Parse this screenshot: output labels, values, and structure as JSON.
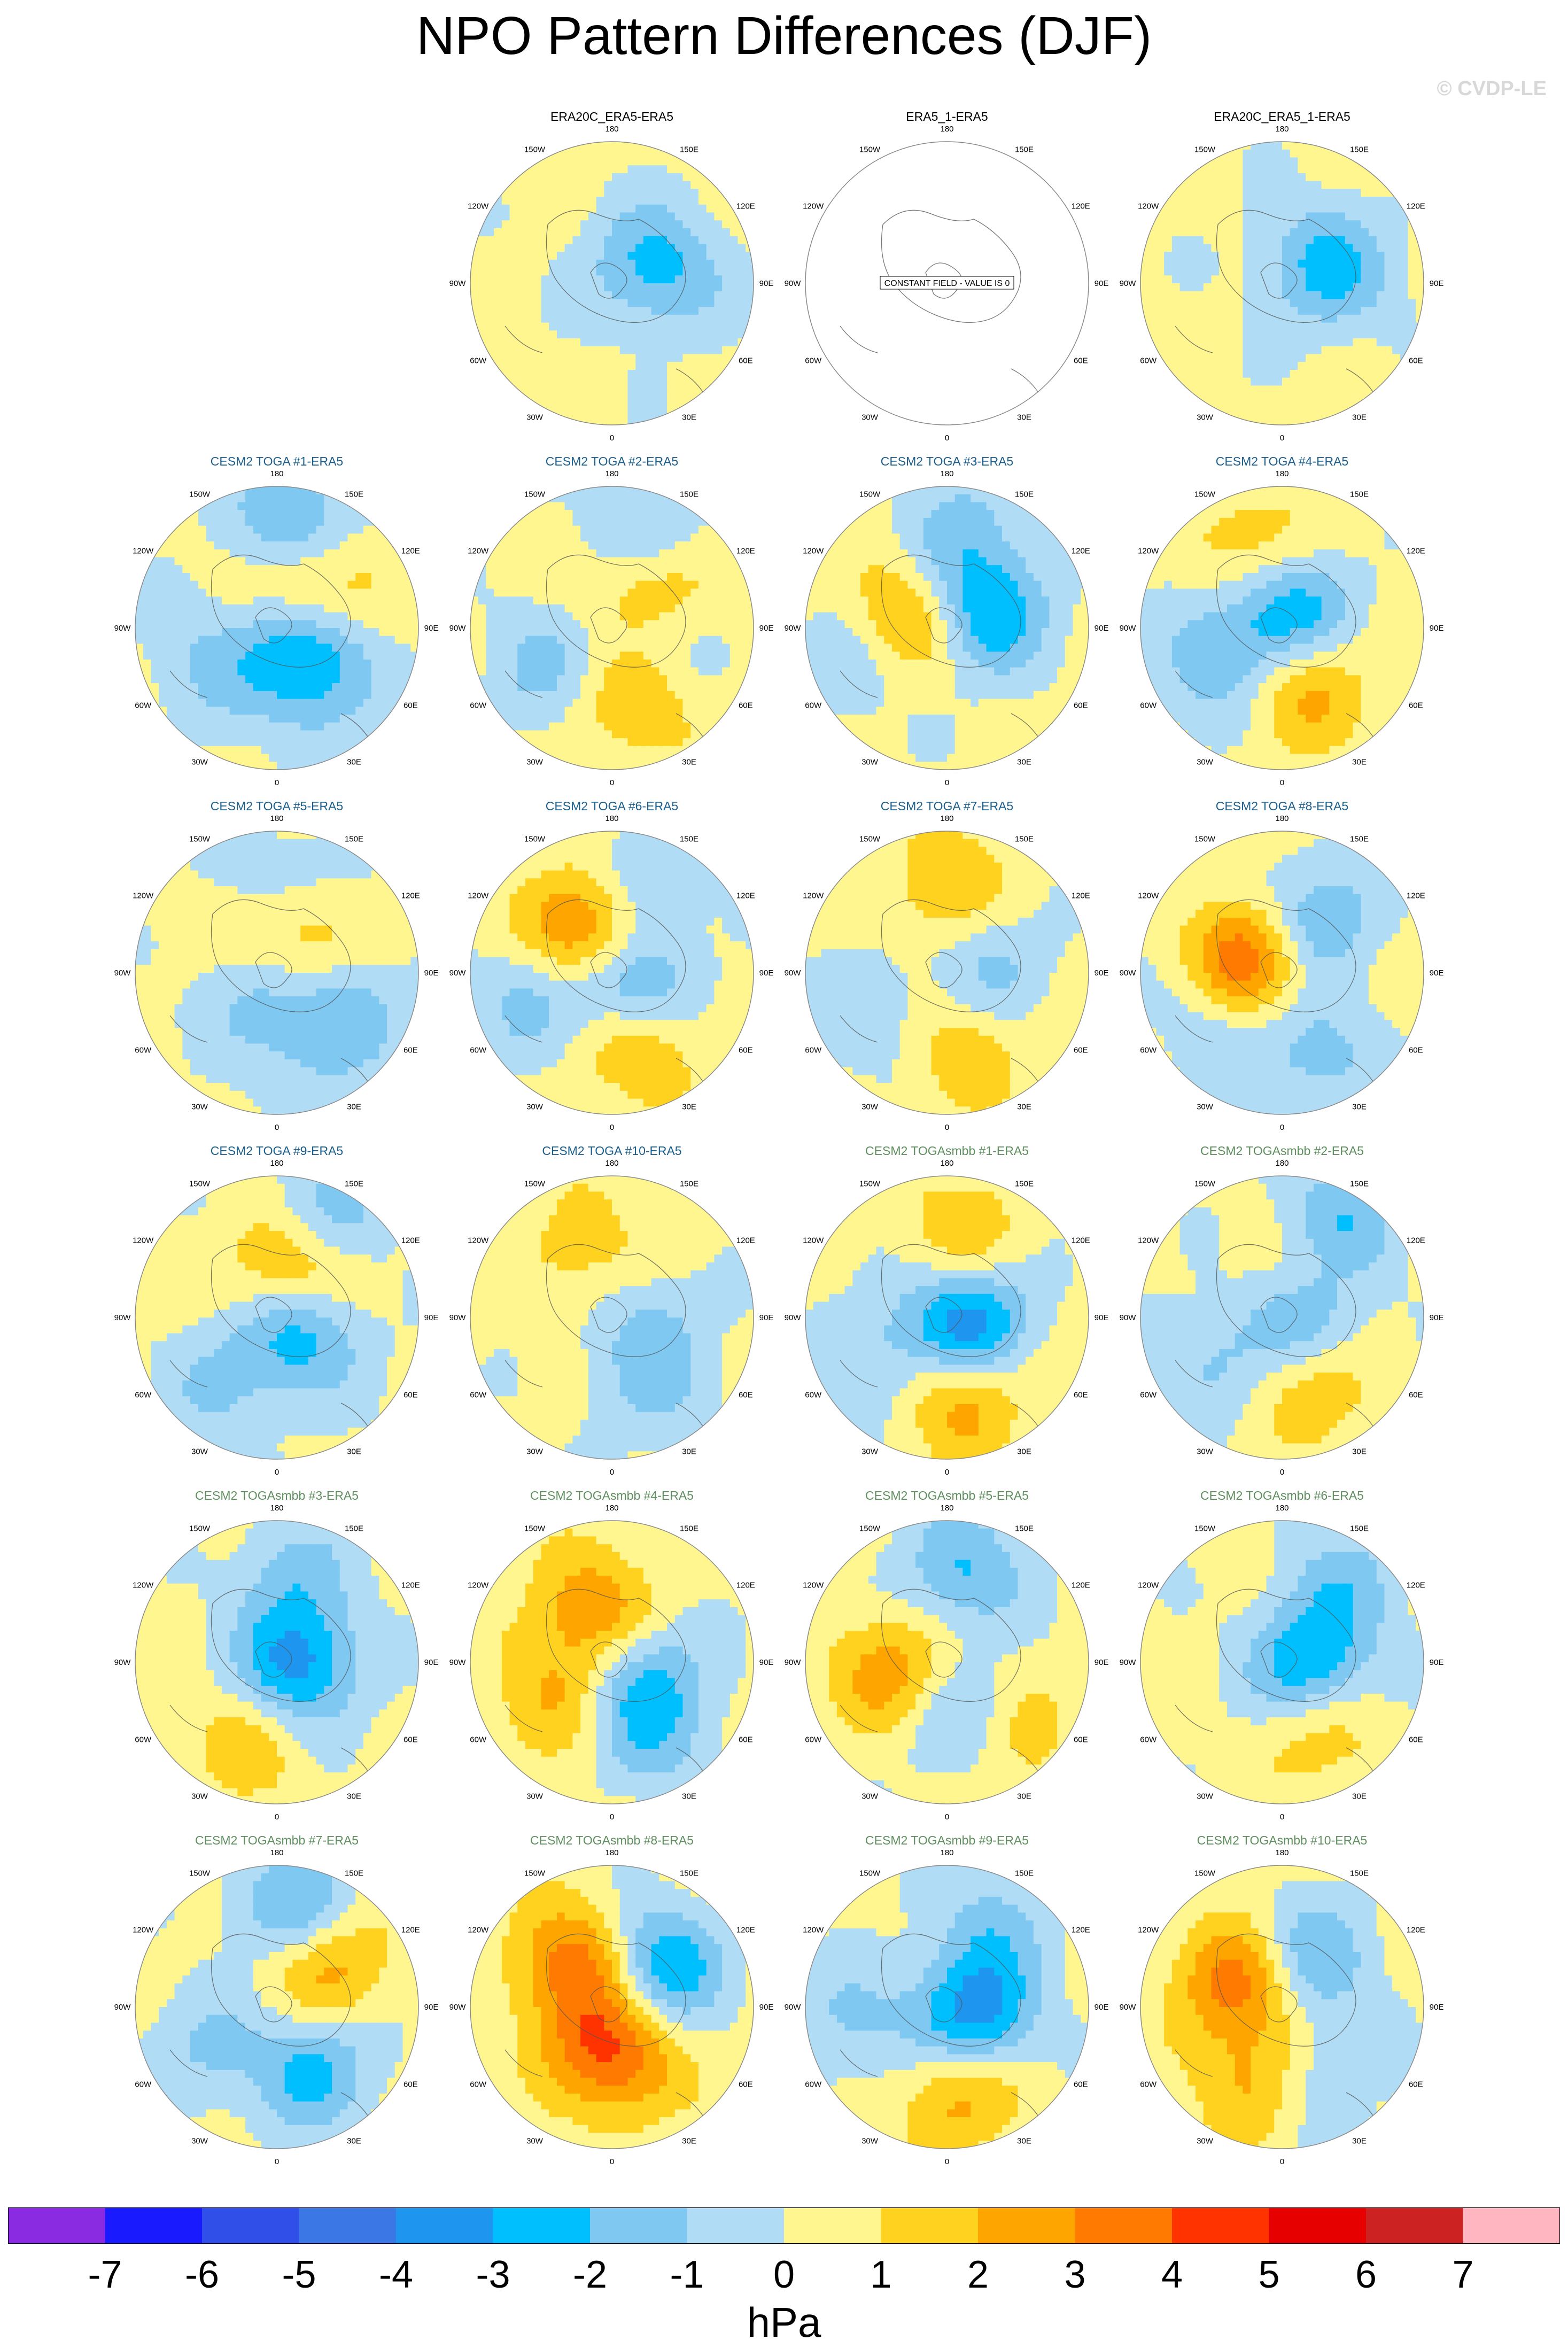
{
  "figure": {
    "title": "NPO Pattern Differences (DJF)",
    "watermark": "© CVDP-LE",
    "units": "hPa"
  },
  "lon_labels": [
    "180",
    "150E",
    "120E",
    "90E",
    "60E",
    "30E",
    "0",
    "30W",
    "60W",
    "90W",
    "120W",
    "150W"
  ],
  "colors": {
    "levels": [
      "#8a2be2",
      "#1a1aff",
      "#2f4fe8",
      "#3b78e6",
      "#1e96f0",
      "#00bfff",
      "#7ec8f2",
      "#b0ddf5",
      "#fff68f",
      "#ffd21f",
      "#ffa500",
      "#ff7a00",
      "#ff3300",
      "#e60000",
      "#cc2222",
      "#ffb6c1"
    ],
    "title_obs": "#000000",
    "title_toga": "#1a5f8e",
    "title_mbb": "#5e8f5e"
  },
  "chart_data": {
    "type": "heatmap",
    "projection": "north-polar-stereographic",
    "colorbar": {
      "ticks": [
        "-7",
        "-6",
        "-5",
        "-4",
        "-3",
        "-2",
        "-1",
        "0",
        "1",
        "2",
        "3",
        "4",
        "5",
        "6",
        "7"
      ],
      "label": "hPa"
    },
    "panels": [
      {
        "title": "ERA20C_ERA5-ERA5",
        "group": "obs",
        "features": [
          [
            100,
            -1.6,
            0.42
          ],
          [
            130,
            -1.3,
            0.25
          ]
        ]
      },
      {
        "title": "ERA5_1-ERA5",
        "group": "obs",
        "constant": true,
        "constant_text": "CONSTANT FIELD - VALUE IS 0",
        "features": []
      },
      {
        "title": "ERA20C_ERA5_1-ERA5",
        "group": "obs",
        "features": [
          [
            100,
            -1.6,
            0.42
          ],
          [
            130,
            -1.3,
            0.25
          ]
        ]
      },
      {
        "title": "CESM2 TOGA #1-ERA5",
        "group": "toga",
        "features": [
          [
            170,
            -2.6,
            0.75
          ],
          [
            135,
            3.2,
            0.35
          ],
          [
            70,
            -3.2,
            0.2
          ],
          [
            35,
            -1.6,
            0.5
          ],
          [
            300,
            -1.4,
            0.55
          ]
        ]
      },
      {
        "title": "CESM2 TOGA #2-ERA5",
        "group": "toga",
        "features": [
          [
            160,
            -1.8,
            0.7
          ],
          [
            135,
            2.6,
            0.35
          ],
          [
            70,
            -1.8,
            0.3
          ],
          [
            20,
            2.2,
            0.5
          ],
          [
            300,
            -1.5,
            0.55
          ]
        ]
      },
      {
        "title": "CESM2 TOGA #3-ERA5",
        "group": "toga",
        "features": [
          [
            110,
            -3.2,
            0.3
          ],
          [
            260,
            2.4,
            0.3
          ],
          [
            170,
            -1.6,
            0.7
          ],
          [
            290,
            -1.3,
            0.7
          ]
        ]
      },
      {
        "title": "CESM2 TOGA #4-ERA5",
        "group": "toga",
        "features": [
          [
            150,
            -2.6,
            0.15
          ],
          [
            20,
            2.2,
            0.45
          ],
          [
            200,
            1.8,
            0.6
          ],
          [
            300,
            -1.5,
            0.6
          ],
          [
            260,
            -1.2,
            0.2
          ]
        ]
      },
      {
        "title": "CESM2 TOGA #5-ERA5",
        "group": "toga",
        "features": [
          [
            150,
            2.6,
            0.3
          ],
          [
            170,
            -1.6,
            0.6
          ],
          [
            330,
            -1.6,
            0.2
          ],
          [
            70,
            -1.3,
            0.55
          ],
          [
            30,
            -1.2,
            0.6
          ]
        ]
      },
      {
        "title": "CESM2 TOGA #6-ERA5",
        "group": "toga",
        "features": [
          [
            210,
            3.6,
            0.35
          ],
          [
            50,
            -3.4,
            0.15
          ],
          [
            160,
            -1.6,
            0.7
          ],
          [
            20,
            2.4,
            0.5
          ],
          [
            290,
            -1.4,
            0.6
          ]
        ]
      },
      {
        "title": "CESM2 TOGA #7-ERA5",
        "group": "toga",
        "features": [
          [
            180,
            1.8,
            0.6
          ],
          [
            100,
            -1.6,
            0.3
          ],
          [
            10,
            1.6,
            0.55
          ],
          [
            300,
            -1.2,
            0.6
          ]
        ]
      },
      {
        "title": "CESM2 TOGA #8-ERA5",
        "group": "toga",
        "features": [
          [
            250,
            4.2,
            0.25
          ],
          [
            150,
            -2.6,
            0.4
          ],
          [
            20,
            -1.8,
            0.6
          ],
          [
            300,
            -1.3,
            0.55
          ]
        ]
      },
      {
        "title": "CESM2 TOGA #9-ERA5",
        "group": "toga",
        "features": [
          [
            160,
            3.2,
            0.4
          ],
          [
            60,
            -3.0,
            0.2
          ],
          [
            155,
            -2.4,
            0.75
          ],
          [
            320,
            -1.3,
            0.6
          ]
        ]
      },
      {
        "title": "CESM2 TOGA #10-ERA5",
        "group": "toga",
        "features": [
          [
            200,
            1.4,
            0.5
          ],
          [
            80,
            -1.4,
            0.25
          ],
          [
            30,
            -1.2,
            0.6
          ]
        ]
      },
      {
        "title": "CESM2 TOGAsmbb #1-ERA5",
        "group": "mbb",
        "features": [
          [
            70,
            -4.2,
            0.15
          ],
          [
            10,
            2.6,
            0.55
          ],
          [
            170,
            1.6,
            0.6
          ],
          [
            300,
            -1.4,
            0.6
          ]
        ]
      },
      {
        "title": "CESM2 TOGAsmbb #2-ERA5",
        "group": "mbb",
        "features": [
          [
            150,
            -3.2,
            0.7
          ],
          [
            90,
            -2.6,
            0.2
          ],
          [
            150,
            2.2,
            0.45
          ],
          [
            30,
            1.8,
            0.55
          ],
          [
            300,
            -1.4,
            0.6
          ]
        ]
      },
      {
        "title": "CESM2 TOGAsmbb #3-ERA5",
        "group": "mbb",
        "features": [
          [
            80,
            -3.6,
            0.15
          ],
          [
            170,
            -1.6,
            0.6
          ],
          [
            340,
            1.4,
            0.6
          ]
        ]
      },
      {
        "title": "CESM2 TOGAsmbb #4-ERA5",
        "group": "mbb",
        "features": [
          [
            200,
            2.6,
            0.4
          ],
          [
            60,
            -2.4,
            0.25
          ],
          [
            30,
            -1.5,
            0.6
          ],
          [
            300,
            1.8,
            0.45
          ]
        ]
      },
      {
        "title": "CESM2 TOGAsmbb #5-ERA5",
        "group": "mbb",
        "features": [
          [
            170,
            -2.4,
            0.65
          ],
          [
            20,
            -2.4,
            0.45
          ],
          [
            280,
            2.4,
            0.4
          ],
          [
            40,
            2.0,
            0.65
          ]
        ]
      },
      {
        "title": "CESM2 TOGAsmbb #6-ERA5",
        "group": "mbb",
        "features": [
          [
            80,
            -3.4,
            0.2
          ],
          [
            140,
            -1.6,
            0.7
          ],
          [
            30,
            1.8,
            0.55
          ]
        ]
      },
      {
        "title": "CESM2 TOGAsmbb #7-ERA5",
        "group": "mbb",
        "features": [
          [
            170,
            -2.6,
            0.7
          ],
          [
            130,
            2.6,
            0.45
          ],
          [
            30,
            -2.6,
            0.5
          ],
          [
            300,
            -1.3,
            0.6
          ]
        ]
      },
      {
        "title": "CESM2 TOGAsmbb #8-ERA5",
        "group": "mbb",
        "features": [
          [
            220,
            3.4,
            0.4
          ],
          [
            130,
            -3.4,
            0.45
          ],
          [
            10,
            2.6,
            0.4
          ],
          [
            330,
            1.8,
            0.25
          ]
        ]
      },
      {
        "title": "CESM2 TOGAsmbb #9-ERA5",
        "group": "mbb",
        "features": [
          [
            70,
            -4.0,
            0.2
          ],
          [
            10,
            2.4,
            0.6
          ],
          [
            150,
            -1.6,
            0.65
          ],
          [
            280,
            -1.4,
            0.7
          ]
        ]
      },
      {
        "title": "CESM2 TOGAsmbb #10-ERA5",
        "group": "mbb",
        "features": [
          [
            240,
            3.4,
            0.35
          ],
          [
            150,
            -2.4,
            0.4
          ],
          [
            340,
            2.0,
            0.55
          ],
          [
            30,
            -1.4,
            0.55
          ]
        ]
      }
    ]
  }
}
